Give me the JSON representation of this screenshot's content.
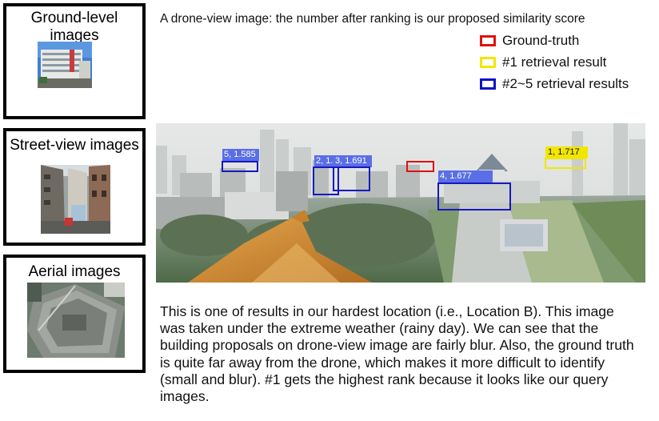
{
  "panels": {
    "ground_title": "Ground-level images",
    "street_title": "Street-view images",
    "aerial_title": "Aerial images"
  },
  "caption_top": "A drone-view image: the number after ranking is our proposed similarity score",
  "legend": [
    {
      "label": "Ground-truth",
      "color": "#e01010"
    },
    {
      "label": "#1 retrieval result",
      "color": "#f2e600"
    },
    {
      "label": "#2~5 retrieval results",
      "color": "#1010c8"
    }
  ],
  "detections": [
    {
      "label": "5, 1.585",
      "kind": "rank"
    },
    {
      "label": "2, 1.",
      "kind": "rank"
    },
    {
      "label": "3, 1.691",
      "kind": "rank"
    },
    {
      "label": "4, 1.677",
      "kind": "rank"
    },
    {
      "label": "1, 1.717",
      "kind": "top"
    },
    {
      "label": "",
      "kind": "ground-truth"
    }
  ],
  "description": "This is one of results in our hardest location (i.e., Location B). This image was taken under the extreme weather (rainy day). We can see that the building proposals on drone-view image are fairly blur. Also, the ground truth is quite far away from the drone, which makes it more difficult to identify (small and blur). #1 gets the highest rank because it looks like our query images."
}
